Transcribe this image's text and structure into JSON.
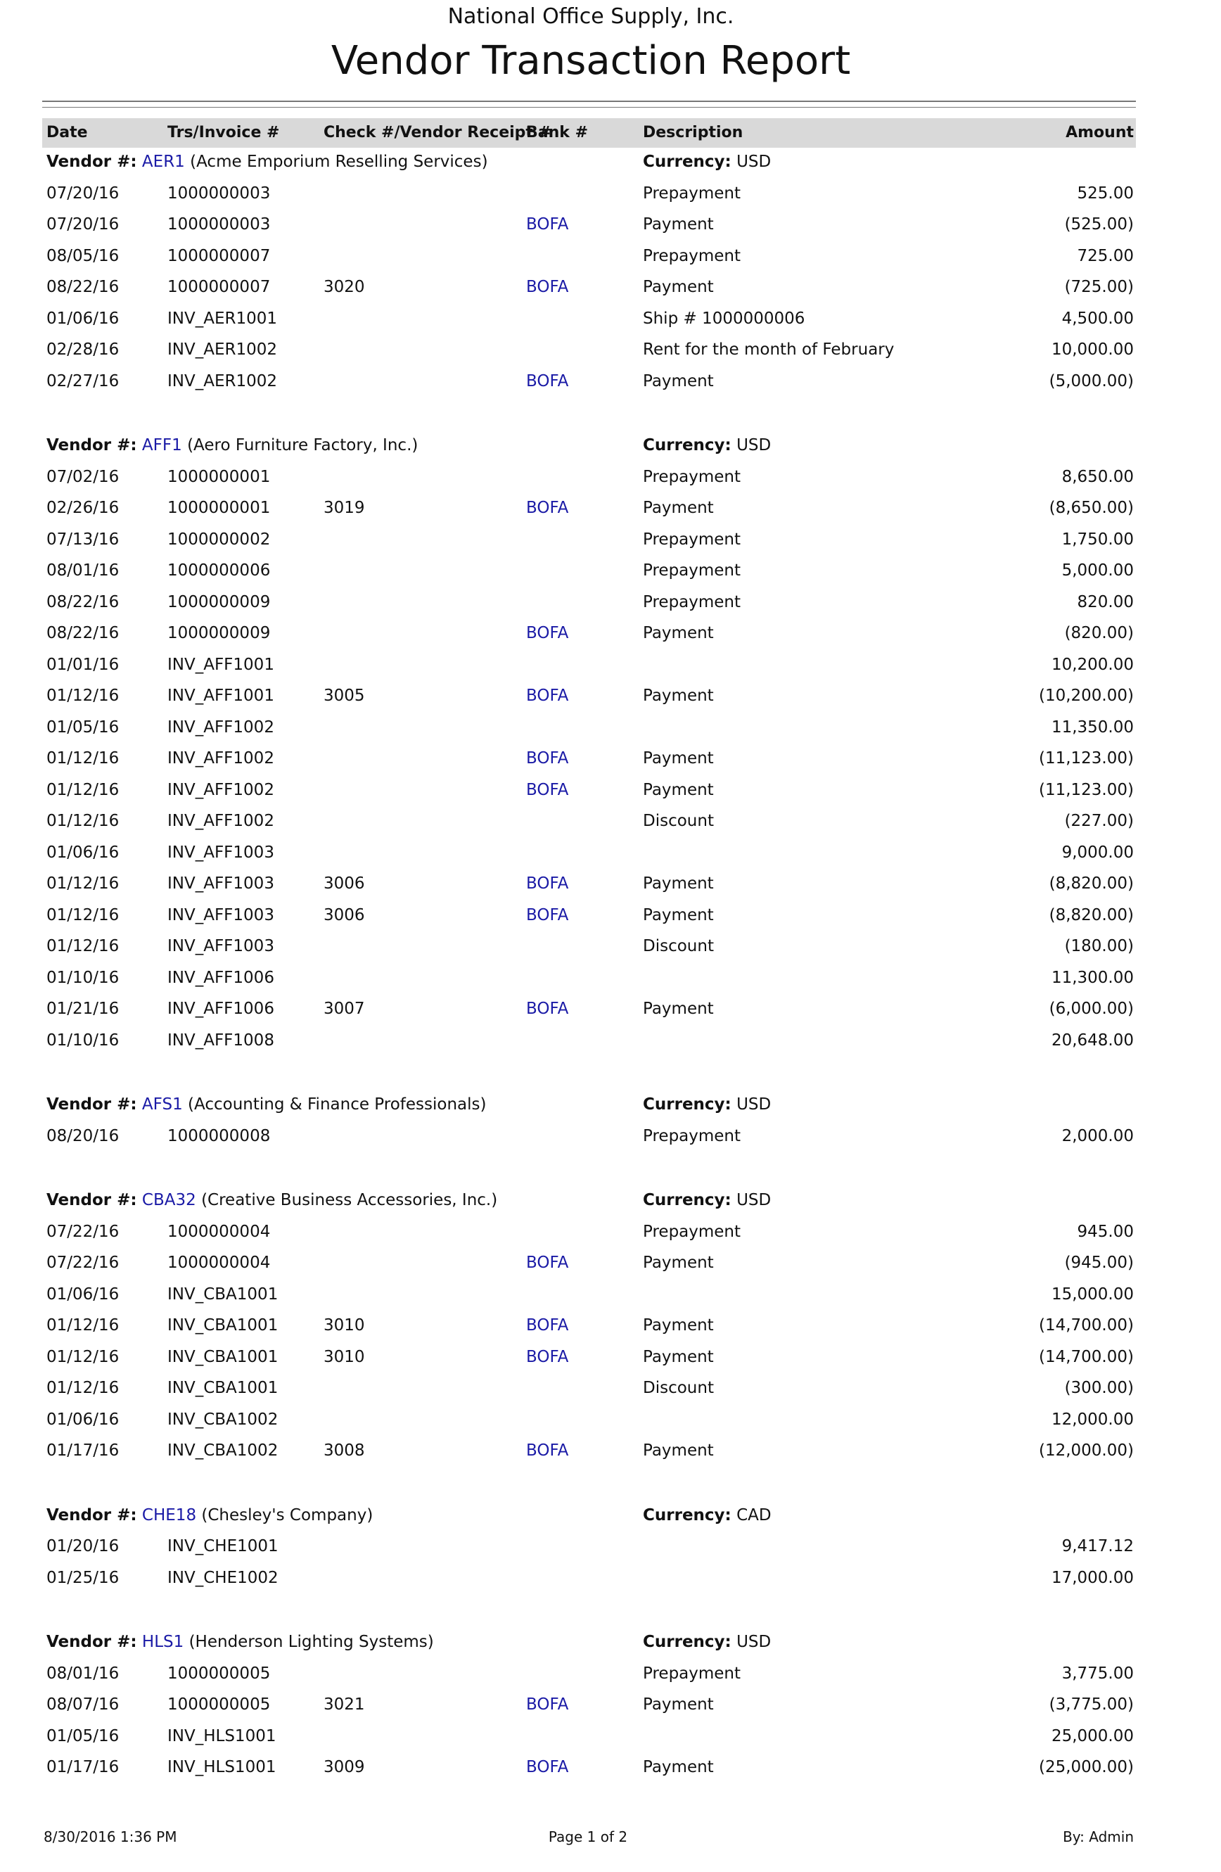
{
  "header": {
    "company": "National Office Supply, Inc.",
    "title": "Vendor Transaction Report"
  },
  "columns": [
    "Date",
    "Trs/Invoice #",
    "Check #/Vendor Receipt #",
    "Bank #",
    "Description",
    "Amount"
  ],
  "labels": {
    "vendor": "Vendor #:",
    "currency": "Currency:"
  },
  "groups": [
    {
      "code": "AER1",
      "name": "(Acme Emporium Reselling Services)",
      "currency": "USD",
      "rows": [
        [
          "07/20/16",
          "1000000003",
          null,
          null,
          "Prepayment",
          "525.00"
        ],
        [
          "07/20/16",
          "1000000003",
          null,
          "BOFA",
          "Payment",
          "(525.00)"
        ],
        [
          "08/05/16",
          "1000000007",
          null,
          null,
          "Prepayment",
          "725.00"
        ],
        [
          "08/22/16",
          "1000000007",
          "3020",
          "BOFA",
          "Payment",
          "(725.00)"
        ],
        [
          "01/06/16",
          "INV_AER1001",
          null,
          null,
          "Ship # 1000000006",
          "4,500.00"
        ],
        [
          "02/28/16",
          "INV_AER1002",
          null,
          null,
          "Rent for the month of February",
          "10,000.00"
        ],
        [
          "02/27/16",
          "INV_AER1002",
          null,
          "BOFA",
          "Payment",
          "(5,000.00)"
        ]
      ]
    },
    {
      "code": "AFF1",
      "name": "(Aero Furniture Factory, Inc.)",
      "currency": "USD",
      "rows": [
        [
          "07/02/16",
          "1000000001",
          null,
          null,
          "Prepayment",
          "8,650.00"
        ],
        [
          "02/26/16",
          "1000000001",
          "3019",
          "BOFA",
          "Payment",
          "(8,650.00)"
        ],
        [
          "07/13/16",
          "1000000002",
          null,
          null,
          "Prepayment",
          "1,750.00"
        ],
        [
          "08/01/16",
          "1000000006",
          null,
          null,
          "Prepayment",
          "5,000.00"
        ],
        [
          "08/22/16",
          "1000000009",
          null,
          null,
          "Prepayment",
          "820.00"
        ],
        [
          "08/22/16",
          "1000000009",
          null,
          "BOFA",
          "Payment",
          "(820.00)"
        ],
        [
          "01/01/16",
          "INV_AFF1001",
          null,
          null,
          null,
          "10,200.00"
        ],
        [
          "01/12/16",
          "INV_AFF1001",
          "3005",
          "BOFA",
          "Payment",
          "(10,200.00)"
        ],
        [
          "01/05/16",
          "INV_AFF1002",
          null,
          null,
          null,
          "11,350.00"
        ],
        [
          "01/12/16",
          "INV_AFF1002",
          null,
          "BOFA",
          "Payment",
          "(11,123.00)"
        ],
        [
          "01/12/16",
          "INV_AFF1002",
          null,
          "BOFA",
          "Payment",
          "(11,123.00)"
        ],
        [
          "01/12/16",
          "INV_AFF1002",
          null,
          null,
          "Discount",
          "(227.00)"
        ],
        [
          "01/06/16",
          "INV_AFF1003",
          null,
          null,
          null,
          "9,000.00"
        ],
        [
          "01/12/16",
          "INV_AFF1003",
          "3006",
          "BOFA",
          "Payment",
          "(8,820.00)"
        ],
        [
          "01/12/16",
          "INV_AFF1003",
          "3006",
          "BOFA",
          "Payment",
          "(8,820.00)"
        ],
        [
          "01/12/16",
          "INV_AFF1003",
          null,
          null,
          "Discount",
          "(180.00)"
        ],
        [
          "01/10/16",
          "INV_AFF1006",
          null,
          null,
          null,
          "11,300.00"
        ],
        [
          "01/21/16",
          "INV_AFF1006",
          "3007",
          "BOFA",
          "Payment",
          "(6,000.00)"
        ],
        [
          "01/10/16",
          "INV_AFF1008",
          null,
          null,
          null,
          "20,648.00"
        ]
      ]
    },
    {
      "code": "AFS1",
      "name": "(Accounting & Finance Professionals)",
      "currency": "USD",
      "rows": [
        [
          "08/20/16",
          "1000000008",
          null,
          null,
          "Prepayment",
          "2,000.00"
        ]
      ]
    },
    {
      "code": "CBA32",
      "name": "(Creative Business Accessories, Inc.)",
      "currency": "USD",
      "rows": [
        [
          "07/22/16",
          "1000000004",
          null,
          null,
          "Prepayment",
          "945.00"
        ],
        [
          "07/22/16",
          "1000000004",
          null,
          "BOFA",
          "Payment",
          "(945.00)"
        ],
        [
          "01/06/16",
          "INV_CBA1001",
          null,
          null,
          null,
          "15,000.00"
        ],
        [
          "01/12/16",
          "INV_CBA1001",
          "3010",
          "BOFA",
          "Payment",
          "(14,700.00)"
        ],
        [
          "01/12/16",
          "INV_CBA1001",
          "3010",
          "BOFA",
          "Payment",
          "(14,700.00)"
        ],
        [
          "01/12/16",
          "INV_CBA1001",
          null,
          null,
          "Discount",
          "(300.00)"
        ],
        [
          "01/06/16",
          "INV_CBA1002",
          null,
          null,
          null,
          "12,000.00"
        ],
        [
          "01/17/16",
          "INV_CBA1002",
          "3008",
          "BOFA",
          "Payment",
          "(12,000.00)"
        ]
      ]
    },
    {
      "code": "CHE18",
      "name": "(Chesley's Company)",
      "currency": "CAD",
      "rows": [
        [
          "01/20/16",
          "INV_CHE1001",
          null,
          null,
          null,
          "9,417.12"
        ],
        [
          "01/25/16",
          "INV_CHE1002",
          null,
          null,
          null,
          "17,000.00"
        ]
      ]
    },
    {
      "code": "HLS1",
      "name": "(Henderson Lighting Systems)",
      "currency": "USD",
      "rows": [
        [
          "08/01/16",
          "1000000005",
          null,
          null,
          "Prepayment",
          "3,775.00"
        ],
        [
          "08/07/16",
          "1000000005",
          "3021",
          "BOFA",
          "Payment",
          "(3,775.00)"
        ],
        [
          "01/05/16",
          "INV_HLS1001",
          null,
          null,
          null,
          "25,000.00"
        ],
        [
          "01/17/16",
          "INV_HLS1001",
          "3009",
          "BOFA",
          "Payment",
          "(25,000.00)"
        ]
      ]
    }
  ],
  "footer": {
    "printed": "8/30/2016 1:36 PM",
    "page": "Page 1 of 2",
    "by": "By: Admin"
  }
}
